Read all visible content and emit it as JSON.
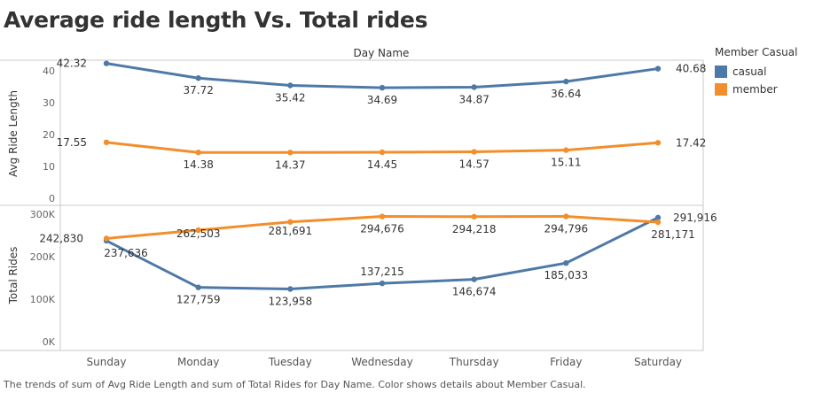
{
  "title": "Average ride length Vs. Total rides",
  "caption": "The trends of sum of Avg Ride Length and sum of Total Rides for Day Name.  Color shows details about Member Casual.",
  "colors": {
    "casual": "#4e79a7",
    "member": "#f28e2b"
  },
  "legend": {
    "title": "Member Casual",
    "items": [
      {
        "label": "casual",
        "color": "#4e79a7"
      },
      {
        "label": "member",
        "color": "#f28e2b"
      }
    ]
  },
  "chart_data": [
    {
      "type": "line",
      "header": "Day Name",
      "categories": [
        "Sunday",
        "Monday",
        "Tuesday",
        "Wednesday",
        "Thursday",
        "Friday",
        "Saturday"
      ],
      "ylabel": "Avg Ride Length",
      "ylim": [
        0,
        45
      ],
      "yticks": [
        "0",
        "10",
        "20",
        "30",
        "40"
      ],
      "yticks_values": [
        0,
        10,
        20,
        30,
        40
      ],
      "series": [
        {
          "name": "casual",
          "values": [
            42.32,
            37.72,
            35.42,
            34.69,
            34.87,
            36.64,
            40.68
          ],
          "labels": [
            "42.32",
            "37.72",
            "35.42",
            "34.69",
            "34.87",
            "36.64",
            "40.68"
          ]
        },
        {
          "name": "member",
          "values": [
            17.55,
            14.38,
            14.37,
            14.45,
            14.57,
            15.11,
            17.42
          ],
          "labels": [
            "17.55",
            "14.38",
            "14.37",
            "14.45",
            "14.57",
            "15.11",
            "17.42"
          ]
        }
      ]
    },
    {
      "type": "line",
      "categories": [
        "Sunday",
        "Monday",
        "Tuesday",
        "Wednesday",
        "Thursday",
        "Friday",
        "Saturday"
      ],
      "ylabel": "Total Rides",
      "ylim": [
        0,
        310000
      ],
      "yticks": [
        "0K",
        "100K",
        "200K",
        "300K"
      ],
      "yticks_values": [
        0,
        100000,
        200000,
        300000
      ],
      "series": [
        {
          "name": "casual",
          "values": [
            237636,
            127759,
            123958,
            137215,
            146674,
            185033,
            291916
          ],
          "labels": [
            "237,636",
            "127,759",
            "123,958",
            "137,215",
            "146,674",
            "185,033",
            "291,916"
          ]
        },
        {
          "name": "member",
          "values": [
            242830,
            262503,
            281691,
            294676,
            294218,
            294796,
            281171
          ],
          "labels": [
            "242,830",
            "262,503",
            "281,691",
            "294,676",
            "294,218",
            "294,796",
            "281,171"
          ]
        }
      ]
    }
  ]
}
